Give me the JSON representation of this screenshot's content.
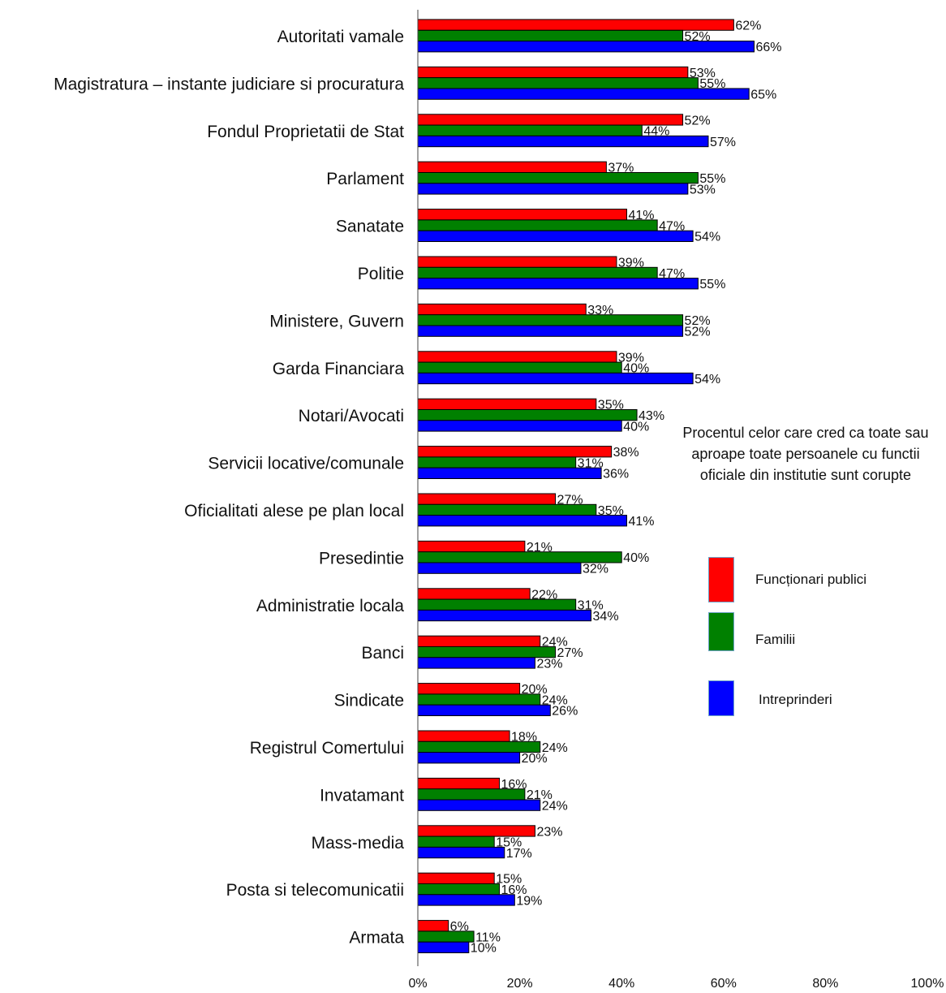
{
  "chart_data": {
    "type": "bar",
    "orientation": "horizontal",
    "categories": [
      "Autoritati vamale",
      "Magistratura – instante judiciare si procuratura",
      "Fondul Proprietatii de Stat",
      "Parlament",
      "Sanatate",
      "Politie",
      "Ministere, Guvern",
      "Garda Financiara",
      "Notari/Avocati",
      "Servicii locative/comunale",
      "Oficialitati alese pe plan local",
      "Presedintie",
      "Administratie locala",
      "Banci",
      "Sindicate",
      "Registrul Comertului",
      "Invatamant",
      "Mass-media",
      "Posta si telecomunicatii",
      "Armata"
    ],
    "series": [
      {
        "name": "Funcționari  publici",
        "color": "#ff0000",
        "values": [
          62,
          53,
          52,
          37,
          41,
          39,
          33,
          39,
          35,
          38,
          27,
          21,
          22,
          24,
          20,
          18,
          16,
          23,
          15,
          6
        ]
      },
      {
        "name": "Familii",
        "color": "#008000",
        "values": [
          52,
          55,
          44,
          55,
          47,
          47,
          52,
          40,
          43,
          31,
          35,
          40,
          31,
          27,
          24,
          24,
          21,
          15,
          16,
          11
        ]
      },
      {
        "name": "Intreprinderi",
        "color": "#0000ff",
        "values": [
          66,
          65,
          57,
          53,
          54,
          55,
          52,
          54,
          40,
          36,
          41,
          32,
          34,
          23,
          26,
          20,
          24,
          17,
          19,
          10
        ]
      }
    ],
    "xlim": [
      0,
      100
    ],
    "x_ticks": [
      "0%",
      "20%",
      "40%",
      "60%",
      "80%",
      "100%"
    ],
    "value_suffix": "%",
    "grid": false,
    "legend_position": "right",
    "legend_note": "Procentul celor care cred ca toate sau aproape toate persoanele cu functii oficiale din institutie sunt corupte"
  }
}
